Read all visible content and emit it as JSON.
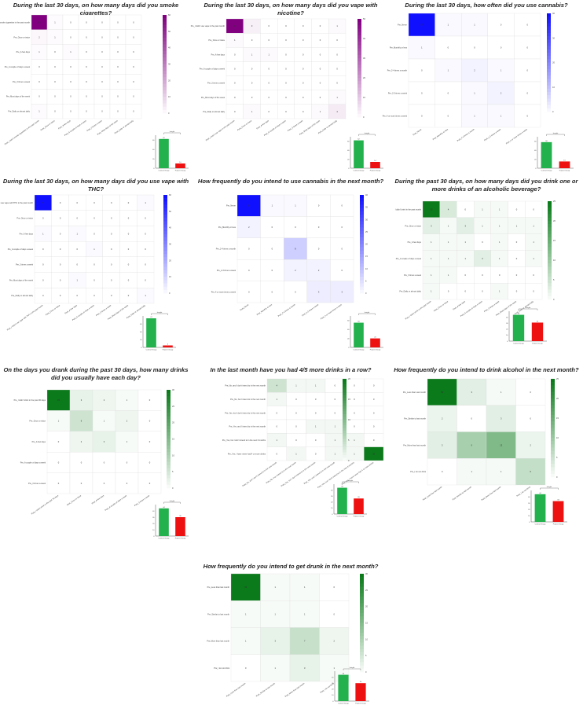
{
  "colors": {
    "purple": "#800080",
    "blue": "#1010ff",
    "green": "#0a7a1a",
    "bar_control": "#22b14c",
    "bar_patient": "#ee1111"
  },
  "bar_legend": {
    "title": "Insight",
    "categories": [
      "Control Group",
      "Patient Group"
    ],
    "sig_label": "p<0.01"
  },
  "panels": [
    {
      "id": "cig",
      "title": "During the last 30 days, on how many days did you smoke cigarettes?",
      "cmap": "purple",
      "rows": [
        "Pre_I didn't smoke cigarettes in the past month",
        "Pre_Once or twice",
        "Pre_A few days",
        "Pre_A couple of days a week",
        "Pre_3 times a week",
        "Pre_Most days of the week",
        "Pre_Daily or almost daily"
      ],
      "cols": [
        "Post_I didn't smoke cigarettes in the past month",
        "Post_Once or twice",
        "Post_A few days",
        "Post_A couple of days a week",
        "Post_3 times a week",
        "Post_Most days of the week",
        "Post_Daily or almost daily"
      ],
      "values": [
        [
          62,
          1,
          0,
          0,
          0,
          0,
          0
        ],
        [
          2,
          1,
          0,
          0,
          0,
          0,
          0
        ],
        [
          1,
          0,
          1,
          0,
          0,
          0,
          0
        ],
        [
          0,
          0,
          0,
          0,
          0,
          0,
          0
        ],
        [
          0,
          0,
          0,
          0,
          0,
          0,
          0
        ],
        [
          0,
          0,
          0,
          0,
          0,
          0,
          0
        ],
        [
          1,
          0,
          0,
          0,
          0,
          0,
          0
        ]
      ],
      "vmax": 60,
      "cticks": [
        0,
        10,
        20,
        30,
        40,
        50,
        60
      ],
      "bar": [
        62,
        10
      ],
      "bar_ymax": 70,
      "bar_ticks": [
        0,
        20,
        40,
        60
      ]
    },
    {
      "id": "vape",
      "title": "During the last 30 days, on how many days did you vape with nicotine?",
      "cmap": "purple",
      "rows": [
        "Pre_I didn't use vape in the past month",
        "Pre_Once or twice",
        "Pre_A few days",
        "Pre_A couple of days a week",
        "Pre_3 times a week",
        "Pre_Most days of the week",
        "Pre_Daily or almost daily"
      ],
      "cols": [
        "Post_I didn't use vape in the past month",
        "Post_Once or twice",
        "Post_A few days",
        "Post_A couple of days a week",
        "Post_3 times a week",
        "Post_Most days of the week",
        "Post_Daily or almost daily"
      ],
      "values": [
        [
          56,
          3,
          0,
          0,
          0,
          0,
          1
        ],
        [
          1,
          0,
          0,
          0,
          0,
          0,
          0
        ],
        [
          0,
          1,
          1,
          0,
          0,
          0,
          0
        ],
        [
          0,
          0,
          0,
          0,
          0,
          0,
          0
        ],
        [
          0,
          0,
          0,
          0,
          0,
          0,
          0
        ],
        [
          0,
          0,
          0,
          0,
          0,
          0,
          1
        ],
        [
          0,
          1,
          0,
          0,
          0,
          1,
          4
        ]
      ],
      "vmax": 50,
      "cticks": [
        0,
        10,
        20,
        30,
        40,
        50
      ],
      "bar": [
        62,
        14
      ],
      "bar_ymax": 70,
      "bar_ticks": [
        0,
        20,
        40,
        60
      ]
    },
    {
      "id": "cann",
      "title": "During the last 30 days, how often did you use cannabis?",
      "cmap": "blue",
      "rows": [
        "Pre_Never",
        "Pre_Monthly or less",
        "Pre_2-4 times a month",
        "Pre_2-3 times a week",
        "Pre_4 or more times a week"
      ],
      "cols": [
        "Post_Never",
        "Post_Monthly or less",
        "Post_2-4 times a month",
        "Post_2-3 times a week",
        "Post_4 or more times a week"
      ],
      "values": [
        [
          57,
          1,
          1,
          0,
          0
        ],
        [
          1,
          0,
          0,
          0,
          0
        ],
        [
          0,
          1,
          2,
          1,
          0
        ],
        [
          0,
          0,
          1,
          2,
          0
        ],
        [
          0,
          0,
          1,
          1,
          0
        ]
      ],
      "vmax": 40,
      "cticks": [
        0,
        10,
        20,
        30,
        40
      ],
      "bar": [
        58,
        15
      ],
      "bar_ymax": 70,
      "bar_ticks": [
        0,
        20,
        40,
        60
      ]
    },
    {
      "id": "thc",
      "title": "During the last 30 days, on how many days did you use vape with THC?",
      "cmap": "blue",
      "rows": [
        "Pre_I didn't use vape with THC in the past month",
        "Pre_Once or twice",
        "Pre_A few days",
        "Pre_A couple of days a week",
        "Pre_3 times a week",
        "Pre_Most days of the week",
        "Pre_Daily or almost daily"
      ],
      "cols": [
        "Post_I didn't use vape with THC in the past month",
        "Post_Once or twice",
        "Post_A few days",
        "Post_A couple of days a week",
        "Post_3 times a week",
        "Post_Most days of the week",
        "Post_Daily or almost daily"
      ],
      "values": [
        [
          71,
          0,
          0,
          0,
          0,
          0,
          1
        ],
        [
          0,
          0,
          0,
          0,
          0,
          0,
          0
        ],
        [
          1,
          0,
          1,
          0,
          0,
          0,
          0
        ],
        [
          0,
          0,
          0,
          1,
          0,
          0,
          0
        ],
        [
          0,
          0,
          0,
          0,
          0,
          0,
          0
        ],
        [
          0,
          0,
          1,
          0,
          0,
          0,
          0
        ],
        [
          0,
          0,
          0,
          0,
          0,
          0,
          1
        ]
      ],
      "vmax": 60,
      "cticks": [
        0,
        10,
        20,
        30,
        40,
        50,
        60
      ],
      "bar": [
        74,
        5
      ],
      "bar_ymax": 80,
      "bar_ticks": [
        0,
        20,
        40,
        60
      ]
    },
    {
      "id": "intcann",
      "title": "How frequently do you intend to use cannabis in the next month?",
      "cmap": "blue",
      "rows": [
        "Pre_Never",
        "Pre_Monthly or less",
        "Pre_2-4 times a month",
        "Pre_2-3 times a week",
        "Pre_4 or more times a week"
      ],
      "cols": [
        "Post_Never",
        "Post_Monthly or less",
        "Post_2-4 times a month",
        "Post_2-3 times a week",
        "Post_4 or more times a week"
      ],
      "values": [
        [
          55,
          1,
          1,
          0,
          0
        ],
        [
          2,
          0,
          0,
          0,
          0
        ],
        [
          0,
          0,
          8,
          0,
          0
        ],
        [
          0,
          0,
          2,
          2,
          0
        ],
        [
          0,
          0,
          0,
          3,
          3
        ]
      ],
      "vmax": 40,
      "cticks": [
        0,
        5,
        10,
        15,
        20,
        25,
        30,
        35,
        40
      ],
      "bar": [
        55,
        20
      ],
      "bar_ymax": 70,
      "bar_ticks": [
        0,
        20,
        40,
        60
      ]
    },
    {
      "id": "alc",
      "title": "During the past 30 days, on how many days did you drink one or more drinks of an alcoholic beverage?",
      "cmap": "green",
      "rows": [
        "I didn't drink in the past month",
        "Pre_Once or twice",
        "Pre_A few days",
        "Pre_A couple of days a week",
        "Pre_3 times a week",
        "Pre_Daily or almost daily"
      ],
      "cols": [
        "Post_I didn't drink in the past month",
        "Post_Once or twice",
        "Post_A few days",
        "Post_A couple of days a week",
        "Post_3 times a week",
        "Post_Most days of the week",
        "Post_Daily or almost daily"
      ],
      "values": [
        [
          30,
          4,
          0,
          1,
          1,
          0,
          0
        ],
        [
          3,
          1,
          3,
          1,
          1,
          1,
          1
        ],
        [
          1,
          1,
          1,
          0,
          1,
          0,
          1
        ],
        [
          1,
          1,
          1,
          3,
          1,
          0,
          1
        ],
        [
          1,
          1,
          0,
          0,
          0,
          0,
          0
        ],
        [
          1,
          0,
          0,
          0,
          1,
          0,
          0
        ]
      ],
      "vmax": 25,
      "cticks": [
        0,
        5,
        10,
        15,
        20,
        25
      ],
      "bar": [
        44,
        31
      ],
      "bar_ymax": 50,
      "bar_ticks": [
        0,
        10,
        20,
        30,
        40
      ]
    },
    {
      "id": "drinks",
      "title": "On the days you drank during the past 30 days, how many drinks did you usually have each day?",
      "cmap": "green",
      "rows": [
        "Pre_I didn't drink in the past 30 days",
        "Pre_Once or twice",
        "Pre_A few days",
        "Pre_A couple of days a week",
        "Pre_3 times a week"
      ],
      "cols": [
        "Post_I didn't drink in the past 30 days",
        "Post_Once or twice",
        "Post_A few days",
        "Post_A couple of days a week",
        "Post_3 times a week"
      ],
      "values": [
        [
          33,
          3,
          2,
          1,
          0
        ],
        [
          1,
          6,
          1,
          2,
          0
        ],
        [
          0,
          2,
          3,
          1,
          0
        ],
        [
          0,
          0,
          0,
          0,
          0
        ],
        [
          0,
          0,
          0,
          0,
          0
        ]
      ],
      "vmax": 30,
      "cticks": [
        0,
        5,
        10,
        15,
        20,
        25,
        30
      ],
      "bar": [
        44,
        30
      ],
      "bar_ymax": 50,
      "bar_ticks": [
        0,
        10,
        20,
        30,
        40
      ]
    },
    {
      "id": "binge",
      "title": "In the last month have you had 4/5 more drinks in a row?",
      "cmap": "green",
      "rows": [
        "Pre_No, and I don't intend to in the next month",
        "Pre_No, but I intend to in the next month",
        "Pre_Yes, but I don't intend to in the next month",
        "Pre_Yes, and I intend to in the next month",
        "Pre_Yes, but I don't intend to in the next 6 months",
        "Pre_Yes, I have never had 4 or more drinks"
      ],
      "cols": [
        "Post_No, and I don't intend to in the next month",
        "Post_No, but I intend to in the next month",
        "Post_Yes, but I don't intend to in the next month",
        "Post_Yes, and I intend to in the next month",
        "Post_Yes, but I don't intend to in the next 6 months",
        "Post_Yes, I have never had 4 or more drinks"
      ],
      "values": [
        [
          4,
          1,
          1,
          0,
          0,
          0
        ],
        [
          1,
          0,
          0,
          0,
          0,
          0
        ],
        [
          0,
          0,
          0,
          0,
          0,
          0
        ],
        [
          0,
          0,
          1,
          1,
          0,
          0
        ],
        [
          1,
          0,
          0,
          1,
          1,
          0
        ],
        [
          0,
          1,
          0,
          1,
          1,
          22
        ]
      ],
      "vmax": 20,
      "cticks": [
        0,
        5,
        10,
        15,
        20
      ],
      "bar": [
        44,
        26
      ],
      "bar_ymax": 50,
      "bar_ticks": [
        0,
        10,
        20,
        30,
        40
      ]
    },
    {
      "id": "intalc",
      "title": "How frequently do you intend to drink alcohol in the next month?",
      "cmap": "green",
      "rows": [
        "Pre_Less than Last month",
        "Pre_Similar to last month",
        "Pre_More than last month",
        "Pre_I do not drink"
      ],
      "cols": [
        "Post_Less than last month",
        "Post_Similar to last month",
        "Post_More than last month",
        "Post_I do not drink"
      ],
      "values": [
        [
          30,
          3,
          1,
          0
        ],
        [
          2,
          0,
          3,
          0
        ],
        [
          3,
          9,
          13,
          2
        ],
        [
          0,
          1,
          1,
          6
        ]
      ],
      "vmax": 25,
      "cticks": [
        0,
        5,
        10,
        15,
        20,
        25
      ],
      "bar": [
        44,
        33
      ],
      "bar_ymax": 50,
      "bar_ticks": [
        0,
        10,
        20,
        30,
        40
      ]
    },
    {
      "id": "intdrunk",
      "title": "How frequently do you intend to get drunk in the next month?",
      "cmap": "green",
      "rows": [
        "Pre_Less than last month",
        "Pre_Similar to last month",
        "Pre_More than last month",
        "Pre_I do not drink"
      ],
      "cols": [
        "Post_Less than last month",
        "Post_Similar to last month",
        "Post_More than last month",
        "Post_I do not drink"
      ],
      "values": [
        [
          33,
          1,
          1,
          0
        ],
        [
          1,
          1,
          1,
          0
        ],
        [
          1,
          3,
          7,
          2
        ],
        [
          0,
          1,
          3,
          1
        ]
      ],
      "vmax": 30,
      "cticks": [
        0,
        5,
        10,
        15,
        20,
        25,
        30
      ],
      "bar": [
        44,
        30
      ],
      "bar_ymax": 50,
      "bar_ticks": [
        0,
        10,
        20,
        30,
        40
      ]
    }
  ],
  "chart_data": [
    {
      "type": "heatmap",
      "title": "During the last 30 days, on how many days did you smoke cigarettes?"
    },
    {
      "type": "heatmap",
      "title": "During the last 30 days, on how many days did you vape with nicotine?"
    },
    {
      "type": "heatmap",
      "title": "During the last 30 days, how often did you use cannabis?"
    },
    {
      "type": "heatmap",
      "title": "During the last 30 days, on how many days did you use vape with THC?"
    },
    {
      "type": "heatmap",
      "title": "How frequently do you intend to use cannabis in the next month?"
    },
    {
      "type": "heatmap",
      "title": "During the past 30 days, on how many days did you drink one or more drinks of an alcoholic beverage?"
    },
    {
      "type": "heatmap",
      "title": "On the days you drank during the past 30 days, how many drinks did you usually have each day?"
    },
    {
      "type": "heatmap",
      "title": "In the last month have you had 4/5 more drinks in a row?"
    },
    {
      "type": "heatmap",
      "title": "How frequently do you intend to drink alcohol in the next month?"
    },
    {
      "type": "heatmap",
      "title": "How frequently do you intend to get drunk in the next month?"
    }
  ]
}
